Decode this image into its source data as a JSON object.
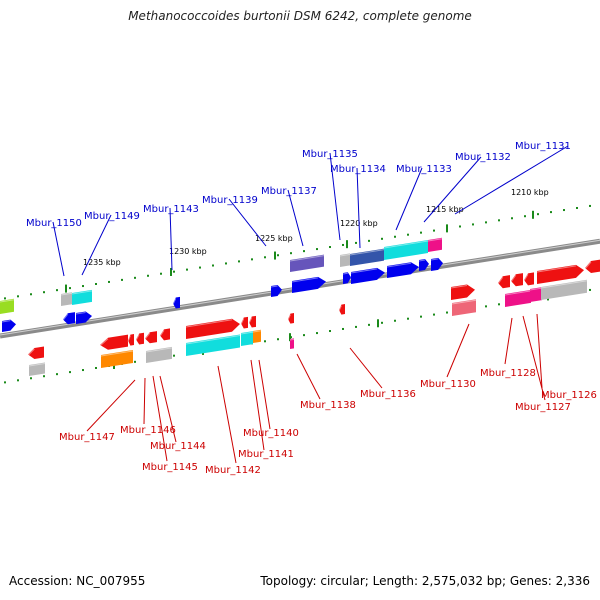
{
  "title": "Methanococcoides burtonii DSM 6242, complete genome",
  "footer": {
    "accession": "Accession: NC_007955",
    "meta": "Topology: circular; Length: 2,575,032 bp; Genes: 2,336"
  },
  "colors": {
    "upper_label": "#0000cc",
    "lower_label": "#cc0000",
    "backbone": "#8a8a8a",
    "tick": "#1a8a1a"
  },
  "scale_labels": [
    "1210 kbp",
    "1215 kbp",
    "1220 kbp",
    "1225 kbp",
    "1230 kbp",
    "1235 kbp"
  ],
  "upper_labels": [
    "Mbur_1131",
    "Mbur_1132",
    "Mbur_1133",
    "Mbur_1134",
    "Mbur_1135",
    "Mbur_1137",
    "Mbur_1139",
    "Mbur_1143",
    "Mbur_1149",
    "Mbur_1150"
  ],
  "lower_labels": [
    "Mbur_1126",
    "Mbur_1127",
    "Mbur_1128",
    "Mbur_1130",
    "Mbur_1136",
    "Mbur_1138",
    "Mbur_1140",
    "Mbur_1141",
    "Mbur_1142",
    "Mbur_1144",
    "Mbur_1145",
    "Mbur_1146",
    "Mbur_1147"
  ]
}
